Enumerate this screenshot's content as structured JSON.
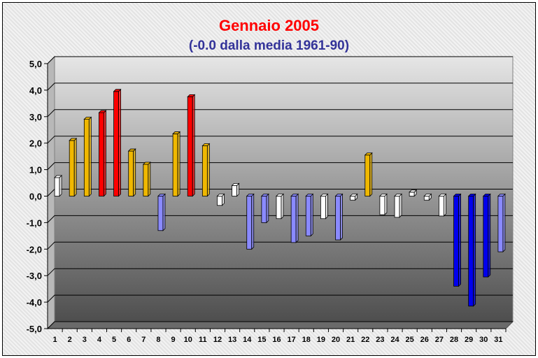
{
  "chart_data": {
    "type": "bar",
    "title": "Gennaio 2005",
    "subtitle": "(-0.0 dalla media 1961-90)",
    "categories": [
      "1",
      "2",
      "3",
      "4",
      "5",
      "6",
      "7",
      "8",
      "9",
      "10",
      "11",
      "12",
      "13",
      "14",
      "15",
      "16",
      "17",
      "18",
      "19",
      "20",
      "21",
      "22",
      "23",
      "24",
      "25",
      "26",
      "27",
      "28",
      "29",
      "30",
      "31"
    ],
    "values": [
      0.7,
      2.1,
      2.9,
      3.15,
      3.95,
      1.7,
      1.2,
      -1.3,
      2.35,
      3.75,
      1.9,
      -0.35,
      0.4,
      -2.0,
      -1.0,
      -0.85,
      -1.75,
      -1.5,
      -0.85,
      -1.65,
      -0.15,
      1.55,
      -0.7,
      -0.8,
      0.15,
      -0.15,
      -0.75,
      -3.4,
      -4.15,
      -3.05,
      -2.1
    ],
    "bar_colors": [
      "#ffffff",
      "#f0b800",
      "#f0b800",
      "#ff0000",
      "#ff0000",
      "#f0b800",
      "#f0b800",
      "#8a8aff",
      "#f0b800",
      "#ff0000",
      "#f0b800",
      "#ffffff",
      "#ffffff",
      "#8a8aff",
      "#8a8aff",
      "#ffffff",
      "#8a8aff",
      "#8a8aff",
      "#ffffff",
      "#8a8aff",
      "#ffffff",
      "#f0b800",
      "#ffffff",
      "#ffffff",
      "#ffffff",
      "#ffffff",
      "#ffffff",
      "#0000ee",
      "#0000ee",
      "#0000ee",
      "#8a8aff"
    ],
    "y_tick_labels": [
      "5,0",
      "4,0",
      "3,0",
      "2,0",
      "1,0",
      "0,0",
      "-1,0",
      "-2,0",
      "-3,0",
      "-4,0",
      "-5,0"
    ],
    "ylim": [
      -5,
      5
    ],
    "grid": true,
    "legend": "none",
    "colors": {
      "title": "#ff0000",
      "subtitle": "#333399",
      "plot_top": "#e6e6e6",
      "plot_bottom": "#4a4a4a"
    }
  }
}
